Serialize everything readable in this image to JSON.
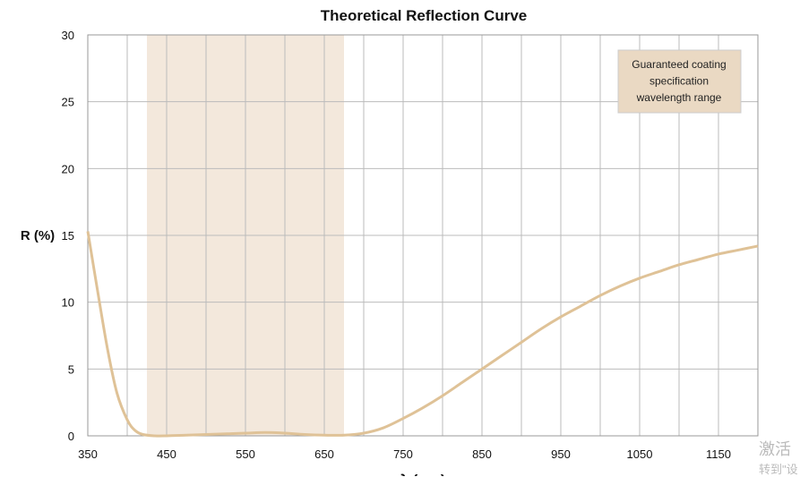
{
  "chart_data": {
    "type": "line",
    "title": "Theoretical Reflection Curve",
    "xlabel": "λ (nm)",
    "ylabel": "R (%)",
    "xlim": [
      350,
      1200
    ],
    "ylim": [
      0,
      30
    ],
    "xticks": [
      350,
      450,
      550,
      650,
      750,
      850,
      950,
      1050,
      1150
    ],
    "yticks": [
      0,
      5,
      10,
      15,
      20,
      25,
      30
    ],
    "grid": true,
    "highlight_band": {
      "x": [
        425,
        675
      ],
      "label": "Guaranteed coating specification wavelength range",
      "color": "#f3e8dc"
    },
    "series": [
      {
        "color": "#dfc297",
        "x": [
          350,
          362,
          375,
          387,
          400,
          410,
          420,
          435,
          450,
          475,
          500,
          525,
          550,
          575,
          600,
          625,
          650,
          675,
          700,
          725,
          750,
          775,
          800,
          825,
          850,
          875,
          900,
          925,
          950,
          975,
          1000,
          1025,
          1050,
          1075,
          1100,
          1125,
          1150,
          1175,
          1200
        ],
        "values": [
          15.3,
          11,
          6.5,
          3.2,
          1.2,
          0.4,
          0.1,
          0,
          0,
          0.05,
          0.1,
          0.15,
          0.2,
          0.25,
          0.2,
          0.1,
          0.05,
          0.05,
          0.2,
          0.6,
          1.3,
          2.1,
          3,
          4,
          5,
          6,
          7,
          8,
          8.9,
          9.7,
          10.5,
          11.2,
          11.8,
          12.3,
          12.8,
          13.2,
          13.6,
          13.9,
          14.2
        ]
      }
    ]
  },
  "watermark": {
    "line1": "激活",
    "line2": "转到\"设"
  }
}
